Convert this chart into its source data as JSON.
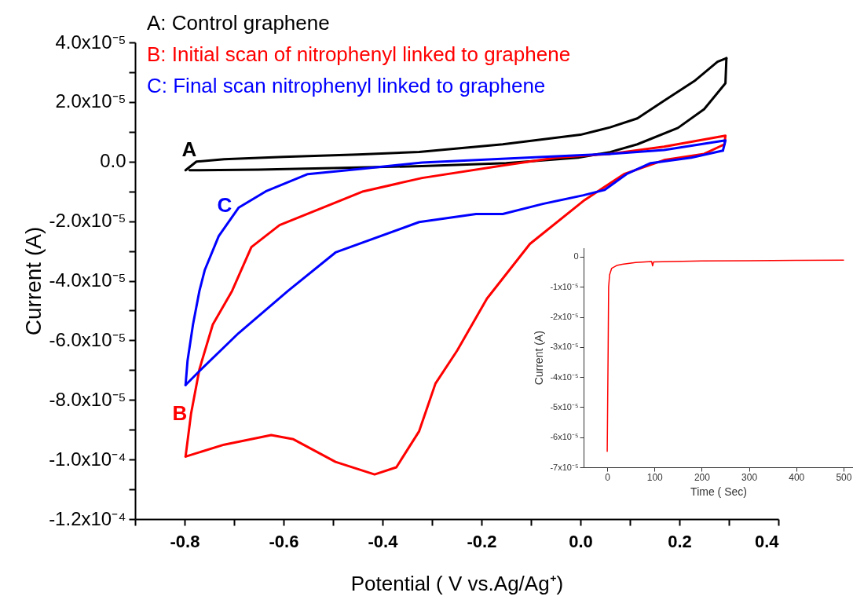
{
  "chart_data": [
    {
      "type": "line",
      "xlabel": "Potential ( V vs.Ag/Ag⁺)",
      "ylabel": "Current (A)",
      "marker": "none",
      "xlim": [
        -0.9,
        0.4
      ],
      "ylim": [
        -0.00012,
        4e-05
      ],
      "xticks": [
        {
          "value": -0.9,
          "label": null
        },
        {
          "value": -0.8,
          "label": "-0.8"
        },
        {
          "value": -0.7,
          "label": null
        },
        {
          "value": -0.6,
          "label": "-0.6"
        },
        {
          "value": -0.5,
          "label": null
        },
        {
          "value": -0.4,
          "label": "-0.4"
        },
        {
          "value": -0.3,
          "label": null
        },
        {
          "value": -0.2,
          "label": "-0.2"
        },
        {
          "value": -0.1,
          "label": null
        },
        {
          "value": 0.0,
          "label": "0.0"
        },
        {
          "value": 0.1,
          "label": null
        },
        {
          "value": 0.2,
          "label": "0.2"
        },
        {
          "value": 0.3,
          "label": null
        },
        {
          "value": 0.4,
          "label": "0.4"
        }
      ],
      "yticks": [
        {
          "value": 4e-05,
          "label": "4.0x10⁻⁵"
        },
        {
          "value": 3e-05,
          "label": null
        },
        {
          "value": 2e-05,
          "label": "2.0x10⁻⁵"
        },
        {
          "value": 1e-05,
          "label": null
        },
        {
          "value": 0,
          "label": "0.0"
        },
        {
          "value": -1e-05,
          "label": null
        },
        {
          "value": -2e-05,
          "label": "-2.0x10⁻⁵"
        },
        {
          "value": -3e-05,
          "label": null
        },
        {
          "value": -4e-05,
          "label": "-4.0x10⁻⁵"
        },
        {
          "value": -5e-05,
          "label": null
        },
        {
          "value": -6e-05,
          "label": "-6.0x10⁻⁵"
        },
        {
          "value": -7e-05,
          "label": null
        },
        {
          "value": -8e-05,
          "label": "-8.0x10⁻⁵"
        },
        {
          "value": -9e-05,
          "label": null
        },
        {
          "value": -0.0001,
          "label": "-1.0x10⁻⁴"
        },
        {
          "value": -0.00011,
          "label": null
        },
        {
          "value": -0.00012,
          "label": "-1.2x10⁻⁴"
        }
      ],
      "annotations": [
        "A",
        "B",
        "C"
      ],
      "series": [
        {
          "name": "A: Control graphene",
          "color": "#000000",
          "x": [
            -0.798,
            -0.776,
            -0.72,
            -0.6,
            -0.45,
            -0.326,
            -0.157,
            0.0,
            0.06,
            0.115,
            0.169,
            0.23,
            0.277,
            0.295
          ],
          "values": [
            -2.9e-06,
            0.0,
            8e-07,
            1.6e-06,
            2.4e-06,
            3.2e-06,
            5.8e-06,
            9e-06,
            1.15e-05,
            1.45e-05,
            2.04e-05,
            2.7e-05,
            3.35e-05,
            3.47e-05
          ]
        },
        {
          "color": "#000000",
          "x": [
            0.295,
            0.293,
            0.25,
            0.197,
            0.115,
            0.06,
            -0.005,
            -0.15,
            -0.32,
            -0.5,
            -0.65,
            -0.79
          ],
          "values": [
            3.47e-05,
            2.63e-05,
            1.76e-05,
            1.13e-05,
            5.8e-06,
            3.2e-06,
            1.3e-06,
            -5e-07,
            -1.5e-06,
            -2.2e-06,
            -2.7e-06,
            -2.9e-06
          ]
        },
        {
          "name": "B: Initial scan of nitrophenyl linked to graphene",
          "color": "#ff0000",
          "x": [
            -0.798,
            -0.72,
            -0.625,
            -0.58,
            -0.495,
            -0.416,
            -0.372,
            -0.326,
            -0.293,
            -0.249,
            -0.189,
            -0.102,
            0.006,
            0.088,
            0.169,
            0.25,
            0.291
          ],
          "values": [
            -9.9e-05,
            -9.5e-05,
            -9.18e-05,
            -9.32e-05,
            -0.0001008,
            -0.000105,
            -0.0001026,
            -9.05e-05,
            -7.45e-05,
            -6.34e-05,
            -4.6e-05,
            -2.76e-05,
            -1.32e-05,
            -4.2e-06,
            5e-07,
            2.6e-06,
            5.8e-06
          ]
        },
        {
          "color": "#ff0000",
          "x": [
            0.291,
            0.293,
            0.169,
            0.06,
            -0.049,
            -0.157,
            -0.32,
            -0.439,
            -0.608,
            -0.665,
            -0.704,
            -0.743,
            -0.77,
            -0.787,
            -0.798
          ],
          "values": [
            5.8e-06,
            8.7e-06,
            5e-06,
            2.6e-06,
            1.3e-06,
            -1.3e-06,
            -5.5e-06,
            -1e-05,
            -2.13e-05,
            -2.87e-05,
            -4.34e-05,
            -5.47e-05,
            -6.97e-05,
            -8.47e-05,
            -9.9e-05
          ]
        },
        {
          "name": "C: Final scan nitrophenyl linked to graphene",
          "color": "#0000ff",
          "x": [
            -0.798,
            -0.77,
            -0.691,
            -0.591,
            -0.495,
            -0.326,
            -0.211,
            -0.157,
            -0.076,
            0.006,
            0.049,
            0.093,
            0.142,
            0.224,
            0.288
          ],
          "values": [
            -7.5e-05,
            -7.03e-05,
            -5.76e-05,
            -4.34e-05,
            -3.05e-05,
            -2.03e-05,
            -1.76e-05,
            -1.76e-05,
            -1.42e-05,
            -1.13e-05,
            -9.5e-06,
            -4.2e-06,
            -5e-07,
            1.3e-06,
            3.7e-06
          ]
        },
        {
          "color": "#0000ff",
          "x": [
            0.288,
            0.293,
            0.169,
            0.06,
            -0.049,
            -0.32,
            -0.439,
            -0.551,
            -0.636,
            -0.691,
            -0.731,
            -0.759,
            -0.77,
            -0.783,
            -0.794,
            -0.798
          ],
          "values": [
            3.7e-06,
            7.1e-06,
            3.9e-06,
            2.6e-06,
            1.8e-06,
            -3e-07,
            -2.4e-06,
            -4.2e-06,
            -1e-05,
            -1.55e-05,
            -2.5e-05,
            -3.63e-05,
            -4.34e-05,
            -5.47e-05,
            -6.68e-05,
            -7.5e-05
          ]
        }
      ]
    },
    {
      "type": "line",
      "xlabel": "Time ( Sec)",
      "ylabel": "Current (A)",
      "marker": "none",
      "xlim": [
        -50,
        520
      ],
      "ylim": [
        -7e-05,
        3e-06
      ],
      "xticks": [
        0,
        100,
        200,
        300,
        400,
        500
      ],
      "yticks": [
        {
          "value": 0,
          "label": "0"
        },
        {
          "value": -1e-05,
          "label": "-1x10⁻⁵"
        },
        {
          "value": -2e-05,
          "label": "-2x10⁻⁵"
        },
        {
          "value": -3e-05,
          "label": "-3x10⁻⁵"
        },
        {
          "value": -4e-05,
          "label": "-4x10⁻⁵"
        },
        {
          "value": -5e-05,
          "label": "-5x10⁻⁵"
        },
        {
          "value": -6e-05,
          "label": "-6x10⁻⁵"
        },
        {
          "value": -7e-05,
          "label": "-7x10⁻⁵"
        }
      ],
      "series": [
        {
          "color": "#ff0000",
          "x": [
            0,
            2,
            3,
            5,
            9.5,
            20,
            32,
            60,
            94,
            96,
            98,
            200,
            300,
            400,
            500
          ],
          "values": [
            -6.47e-05,
            -3e-05,
            -1e-05,
            -6e-06,
            -3.8e-06,
            -2.9e-06,
            -2.5e-06,
            -1.9e-06,
            -1.6e-06,
            -3e-06,
            -1.7e-06,
            -1.4e-06,
            -1.3e-06,
            -1.2e-06,
            -1.1e-06
          ]
        }
      ]
    }
  ]
}
